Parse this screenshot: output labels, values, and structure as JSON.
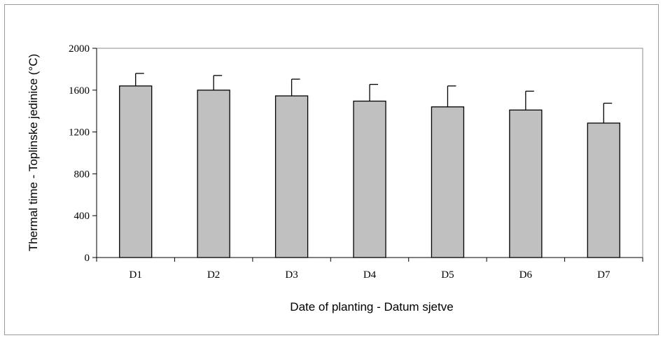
{
  "chart_data": {
    "type": "bar",
    "categories": [
      "D1",
      "D2",
      "D3",
      "D4",
      "D5",
      "D6",
      "D7"
    ],
    "values": [
      1640,
      1600,
      1545,
      1495,
      1440,
      1410,
      1285
    ],
    "error_upper": [
      120,
      140,
      160,
      160,
      200,
      180,
      190
    ],
    "ylim": [
      0,
      2000
    ],
    "yticks": [
      "0",
      "400",
      "800",
      "1200",
      "1600",
      "2000"
    ],
    "xlabel": "Date of planting - Datum sjetve",
    "ylabel": "Thermal time - Toplinske jedinice (°C)",
    "grid": false,
    "bar_color": "#c0c0c0",
    "bar_edge_color": "#000000",
    "legend": "none"
  }
}
